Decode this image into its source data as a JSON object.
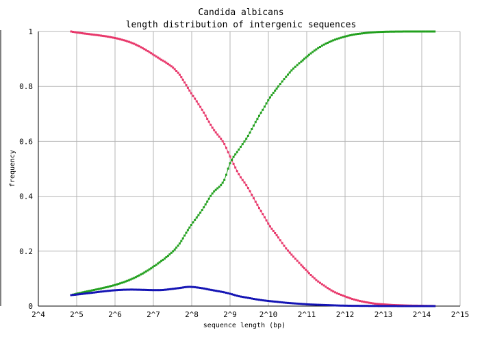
{
  "chart_data": {
    "type": "line",
    "title": [
      "Candida albicans",
      "length distribution of intergenic sequences"
    ],
    "xlabel": "sequence length (bp)",
    "ylabel": "frequency",
    "x_scale": "log2",
    "x_ticks": [
      "2^4",
      "2^5",
      "2^6",
      "2^7",
      "2^8",
      "2^9",
      "2^10",
      "2^11",
      "2^12",
      "2^13",
      "2^14",
      "2^15"
    ],
    "y_ticks": [
      "0",
      "0.2",
      "0.4",
      "0.6",
      "0.8",
      "1"
    ],
    "xlim": [
      16,
      32768
    ],
    "ylim": [
      0,
      1
    ],
    "grid": true,
    "series": [
      {
        "color": "#e8386b",
        "x": [
          29,
          85,
          139,
          200,
          246,
          309,
          372,
          462,
          512,
          600,
          710,
          812,
          925,
          1056,
          1225,
          1410,
          1609,
          1852,
          2135,
          2432,
          2794,
          3196,
          3670,
          4210,
          4830,
          5550,
          6360,
          7300,
          8370,
          9590,
          11010,
          12630,
          14480,
          16600,
          19040,
          20640
        ],
        "y": [
          1.0,
          0.96,
          0.905,
          0.85,
          0.785,
          0.715,
          0.65,
          0.59,
          0.545,
          0.48,
          0.43,
          0.38,
          0.335,
          0.29,
          0.25,
          0.21,
          0.18,
          0.15,
          0.12,
          0.095,
          0.075,
          0.057,
          0.044,
          0.033,
          0.024,
          0.017,
          0.012,
          0.008,
          0.006,
          0.004,
          0.003,
          0.002,
          0.0015,
          0.001,
          0.0005,
          0.0003
        ]
      },
      {
        "color": "#22a01e",
        "x": [
          29,
          85,
          139,
          200,
          246,
          309,
          372,
          462,
          512,
          600,
          710,
          812,
          925,
          1056,
          1225,
          1410,
          1609,
          1852,
          2135,
          2432,
          2794,
          3196,
          3670,
          4210,
          4830,
          5550,
          6360,
          7300,
          8370,
          9590,
          11010,
          12630,
          14480,
          16600,
          19040,
          20640
        ],
        "y": [
          0.04,
          0.097,
          0.155,
          0.22,
          0.286,
          0.35,
          0.41,
          0.46,
          0.52,
          0.57,
          0.62,
          0.67,
          0.715,
          0.76,
          0.8,
          0.835,
          0.865,
          0.89,
          0.915,
          0.935,
          0.952,
          0.965,
          0.975,
          0.983,
          0.989,
          0.993,
          0.996,
          0.998,
          0.999,
          0.9995,
          0.9998,
          1.0,
          1.0,
          1.0,
          1.0,
          1.0
        ]
      },
      {
        "color": "#1414b4",
        "x": [
          29,
          85,
          139,
          200,
          246,
          309,
          372,
          462,
          512,
          600,
          710,
          812,
          925,
          1056,
          1225,
          1410,
          1609,
          1852,
          2135,
          2432,
          2794,
          3196,
          3670,
          4210,
          4830,
          5550,
          6360,
          7300,
          8370,
          9590,
          11010,
          12630,
          14480,
          16600,
          19040,
          20640
        ],
        "y": [
          0.04,
          0.06,
          0.058,
          0.065,
          0.07,
          0.065,
          0.058,
          0.05,
          0.045,
          0.036,
          0.03,
          0.025,
          0.021,
          0.018,
          0.015,
          0.012,
          0.01,
          0.008,
          0.006,
          0.005,
          0.004,
          0.003,
          0.002,
          0.0015,
          0.001,
          0.0008,
          0.0006,
          0.0004,
          0.0003,
          0.0002,
          0.0001,
          0.0001,
          0.0,
          0.0,
          0.0,
          0.0
        ]
      }
    ]
  }
}
